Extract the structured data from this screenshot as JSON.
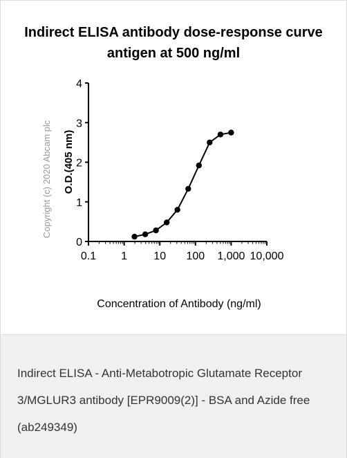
{
  "chart_data": {
    "type": "line",
    "title": [
      "Indirect ELISA antibody dose-response curve",
      "antigen at 500 ng/ml"
    ],
    "xlabel": "Concentration of Antibody (ng/ml)",
    "ylabel": "O.D.(405 nm)",
    "x_scale": "log",
    "xlim": [
      0.1,
      10000
    ],
    "ylim": [
      0,
      4
    ],
    "x_ticks": [
      0.1,
      1,
      10,
      100,
      1000,
      10000
    ],
    "x_tick_labels": [
      "0.1",
      "1",
      "10",
      "100",
      "1,000",
      "10,000"
    ],
    "y_ticks": [
      0,
      1,
      2,
      3,
      4
    ],
    "y_tick_labels": [
      "0",
      "1",
      "2",
      "3",
      "4"
    ],
    "grid": false,
    "series": [
      {
        "x": [
          1.95,
          3.9,
          7.8,
          15.6,
          31.25,
          62.5,
          125,
          250,
          500,
          1000
        ],
        "y": [
          0.12,
          0.18,
          0.28,
          0.48,
          0.8,
          1.33,
          1.92,
          2.5,
          2.7,
          2.75
        ]
      }
    ],
    "colors": {
      "line": "#000000",
      "marker": "#000000"
    }
  },
  "watermark": "Copyright (c) 2020 Abcam plc",
  "caption": "Indirect ELISA - Anti-Metabotropic Glutamate Receptor 3/MGLUR3 antibody [EPR9009(2)] - BSA and Azide free (ab249349)"
}
